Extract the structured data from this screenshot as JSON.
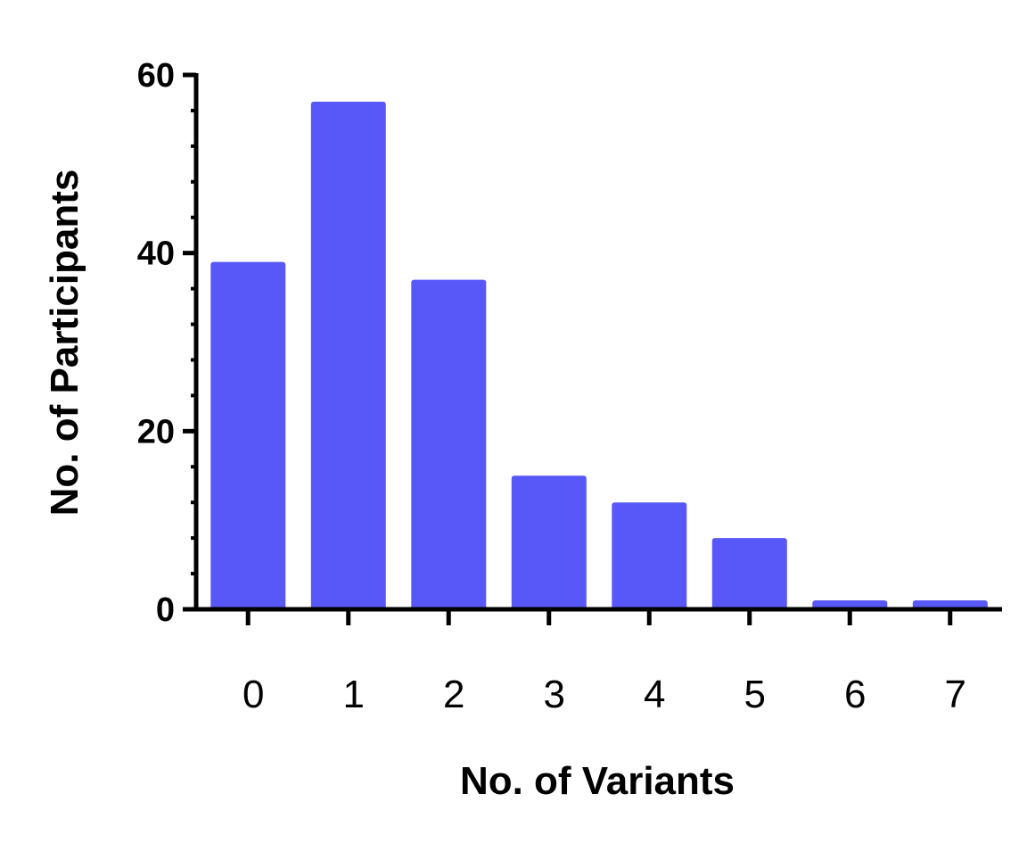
{
  "chart_data": {
    "type": "bar",
    "title": "",
    "xlabel": "No. of Variants",
    "ylabel": "No. of Participants",
    "categories": [
      "0",
      "1",
      "2",
      "3",
      "4",
      "5",
      "6",
      "7"
    ],
    "values": [
      39,
      57,
      37,
      15,
      12,
      8,
      1,
      1
    ],
    "ylim": [
      0,
      60
    ],
    "y_ticks": [
      "0",
      "20",
      "40",
      "60"
    ],
    "y_minor_tick_step": 4,
    "grid": false,
    "legend": "none",
    "bar_color": "#5858F8"
  }
}
